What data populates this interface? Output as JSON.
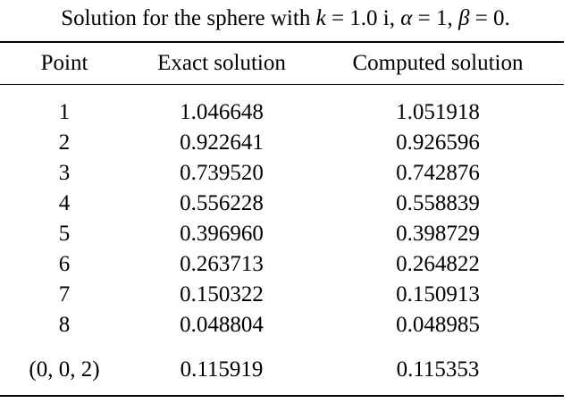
{
  "caption": {
    "prefix": "Solution for the sphere with ",
    "k_var": "k",
    "k_eq": " = 1.0",
    "k_unit": " i",
    "sep1": ", ",
    "alpha_var": "α",
    "alpha_eq": " = 1, ",
    "beta_var": "β",
    "beta_eq": " = 0."
  },
  "table": {
    "headers": [
      "Point",
      "Exact solution",
      "Computed solution"
    ],
    "rows": [
      {
        "point": "1",
        "exact": "1.046648",
        "computed": "1.051918"
      },
      {
        "point": "2",
        "exact": "0.922641",
        "computed": "0.926596"
      },
      {
        "point": "3",
        "exact": "0.739520",
        "computed": "0.742876"
      },
      {
        "point": "4",
        "exact": "0.556228",
        "computed": "0.558839"
      },
      {
        "point": "5",
        "exact": "0.396960",
        "computed": "0.398729"
      },
      {
        "point": "6",
        "exact": "0.263713",
        "computed": "0.264822"
      },
      {
        "point": "7",
        "exact": "0.150322",
        "computed": "0.150913"
      },
      {
        "point": "8",
        "exact": "0.048804",
        "computed": "0.048985"
      },
      {
        "point": "(0, 0, 2)",
        "exact": "0.115919",
        "computed": "0.115353"
      }
    ]
  }
}
